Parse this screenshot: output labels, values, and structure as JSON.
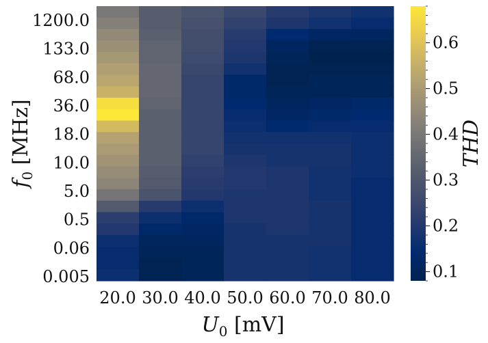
{
  "chart_data": {
    "type": "heatmap",
    "title": "",
    "xlabel": {
      "main": "U",
      "sub": "0",
      "unit": " [mV]"
    },
    "ylabel": {
      "main": "f",
      "sub": "0",
      "unit": " [MHz]"
    },
    "colorbar_label": "THD",
    "colormap": "cividis",
    "x_categories": [
      "20.0",
      "30.0",
      "40.0",
      "50.0",
      "60.0",
      "70.0",
      "80.0"
    ],
    "y_tick_labels": [
      "1200.0",
      "133.0",
      "68.0",
      "36.0",
      "18.0",
      "10.0",
      "5.0",
      "0.5",
      "0.06",
      "0.005"
    ],
    "vmin": 0.08,
    "vmax": 0.68,
    "colorbar_ticks": [
      "0.1",
      "0.2",
      "0.3",
      "0.4",
      "0.5",
      "0.6"
    ],
    "values": [
      [
        0.4,
        0.32,
        0.29,
        0.25,
        0.21,
        0.19,
        0.17
      ],
      [
        0.42,
        0.32,
        0.28,
        0.23,
        0.19,
        0.17,
        0.15
      ],
      [
        0.45,
        0.33,
        0.27,
        0.21,
        0.14,
        0.12,
        0.11
      ],
      [
        0.47,
        0.34,
        0.27,
        0.2,
        0.11,
        0.09,
        0.09
      ],
      [
        0.49,
        0.34,
        0.26,
        0.19,
        0.1,
        0.08,
        0.08
      ],
      [
        0.51,
        0.35,
        0.25,
        0.17,
        0.09,
        0.09,
        0.09
      ],
      [
        0.53,
        0.35,
        0.24,
        0.13,
        0.09,
        0.1,
        0.1
      ],
      [
        0.56,
        0.35,
        0.24,
        0.13,
        0.1,
        0.1,
        0.1
      ],
      [
        0.66,
        0.34,
        0.24,
        0.14,
        0.11,
        0.12,
        0.13
      ],
      [
        0.68,
        0.33,
        0.24,
        0.15,
        0.12,
        0.13,
        0.14
      ],
      [
        0.58,
        0.33,
        0.24,
        0.16,
        0.14,
        0.15,
        0.15
      ],
      [
        0.52,
        0.33,
        0.24,
        0.17,
        0.17,
        0.17,
        0.16
      ],
      [
        0.5,
        0.33,
        0.24,
        0.18,
        0.18,
        0.18,
        0.16
      ],
      [
        0.48,
        0.33,
        0.23,
        0.19,
        0.18,
        0.18,
        0.16
      ],
      [
        0.46,
        0.32,
        0.22,
        0.2,
        0.19,
        0.17,
        0.16
      ],
      [
        0.44,
        0.31,
        0.21,
        0.2,
        0.19,
        0.17,
        0.15
      ],
      [
        0.39,
        0.29,
        0.2,
        0.19,
        0.19,
        0.17,
        0.15
      ],
      [
        0.31,
        0.21,
        0.16,
        0.19,
        0.19,
        0.18,
        0.15
      ],
      [
        0.22,
        0.16,
        0.13,
        0.19,
        0.19,
        0.18,
        0.15
      ],
      [
        0.2,
        0.13,
        0.12,
        0.18,
        0.19,
        0.18,
        0.15
      ],
      [
        0.16,
        0.11,
        0.11,
        0.18,
        0.18,
        0.18,
        0.15
      ],
      [
        0.15,
        0.1,
        0.1,
        0.18,
        0.18,
        0.17,
        0.15
      ],
      [
        0.15,
        0.09,
        0.1,
        0.18,
        0.18,
        0.17,
        0.15
      ],
      [
        0.16,
        0.09,
        0.1,
        0.18,
        0.18,
        0.17,
        0.15
      ]
    ]
  }
}
